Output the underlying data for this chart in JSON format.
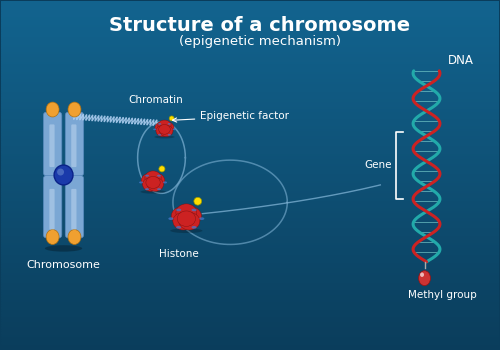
{
  "title": "Structure of a chromosome",
  "subtitle": "(epigenetic mechanism)",
  "bg_color": "#0a3d5c",
  "figsize": [
    5.0,
    3.5
  ],
  "dpi": 100,
  "labels": {
    "chromosome": "Chromosome",
    "chromatin": "Chromatin",
    "epigenetic_factor": "Epigenetic factor",
    "histone": "Histone",
    "dna": "DNA",
    "gene": "Gene",
    "methyl_group": "Methyl group"
  },
  "colors": {
    "chromosome_body": "#7ba7d4",
    "chromosome_dark": "#5588bb",
    "chromosome_cap": "#f0a030",
    "centromere": "#1a3aaa",
    "histone_red": "#cc2222",
    "histone_stripe": "#4477cc",
    "epigenetic_yellow": "#ffdd00",
    "dna_teal": "#22aaaa",
    "dna_red": "#cc2222",
    "methyl_red": "#cc3333",
    "methyl_white": "#ffffff",
    "chromatin_line": "#aaccee",
    "loop_color": "#88bbdd",
    "text_color": "#ffffff",
    "bg_top": "#0a3d5c",
    "bg_bottom": "#0d6070"
  }
}
